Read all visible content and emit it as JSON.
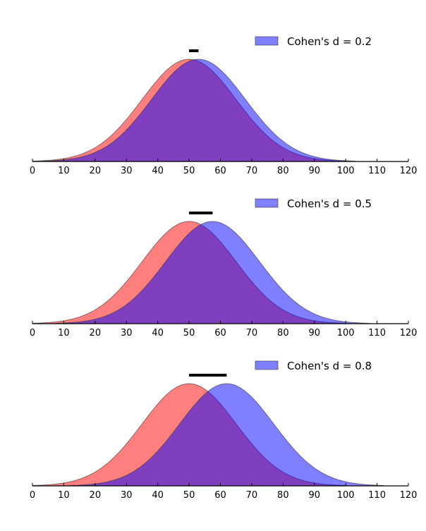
{
  "chart_data": [
    {
      "type": "area",
      "legend": "Cohen's d = 0.2",
      "legend_placement": "top-right",
      "xlim": [
        0,
        120
      ],
      "xticks": [
        0,
        10,
        20,
        30,
        40,
        50,
        60,
        70,
        80,
        90,
        100,
        110,
        120
      ],
      "series": [
        {
          "mean": 50,
          "sd": 15,
          "color": "#ff0000"
        },
        {
          "mean": 53,
          "sd": 15,
          "color": "#0000ff"
        }
      ],
      "effect_bar": [
        50,
        53
      ]
    },
    {
      "type": "area",
      "legend": "Cohen's d = 0.5",
      "legend_placement": "top-right",
      "xlim": [
        0,
        120
      ],
      "xticks": [
        0,
        10,
        20,
        30,
        40,
        50,
        60,
        70,
        80,
        90,
        100,
        110,
        120
      ],
      "series": [
        {
          "mean": 50,
          "sd": 15,
          "color": "#ff0000"
        },
        {
          "mean": 57.5,
          "sd": 15,
          "color": "#0000ff"
        }
      ],
      "effect_bar": [
        50,
        57.5
      ]
    },
    {
      "type": "area",
      "legend": "Cohen's d = 0.8",
      "legend_placement": "top-right",
      "xlim": [
        0,
        120
      ],
      "xticks": [
        0,
        10,
        20,
        30,
        40,
        50,
        60,
        70,
        80,
        90,
        100,
        110,
        120
      ],
      "series": [
        {
          "mean": 50,
          "sd": 15,
          "color": "#ff0000"
        },
        {
          "mean": 62,
          "sd": 15,
          "color": "#0000ff"
        }
      ],
      "effect_bar": [
        50,
        62
      ]
    }
  ]
}
